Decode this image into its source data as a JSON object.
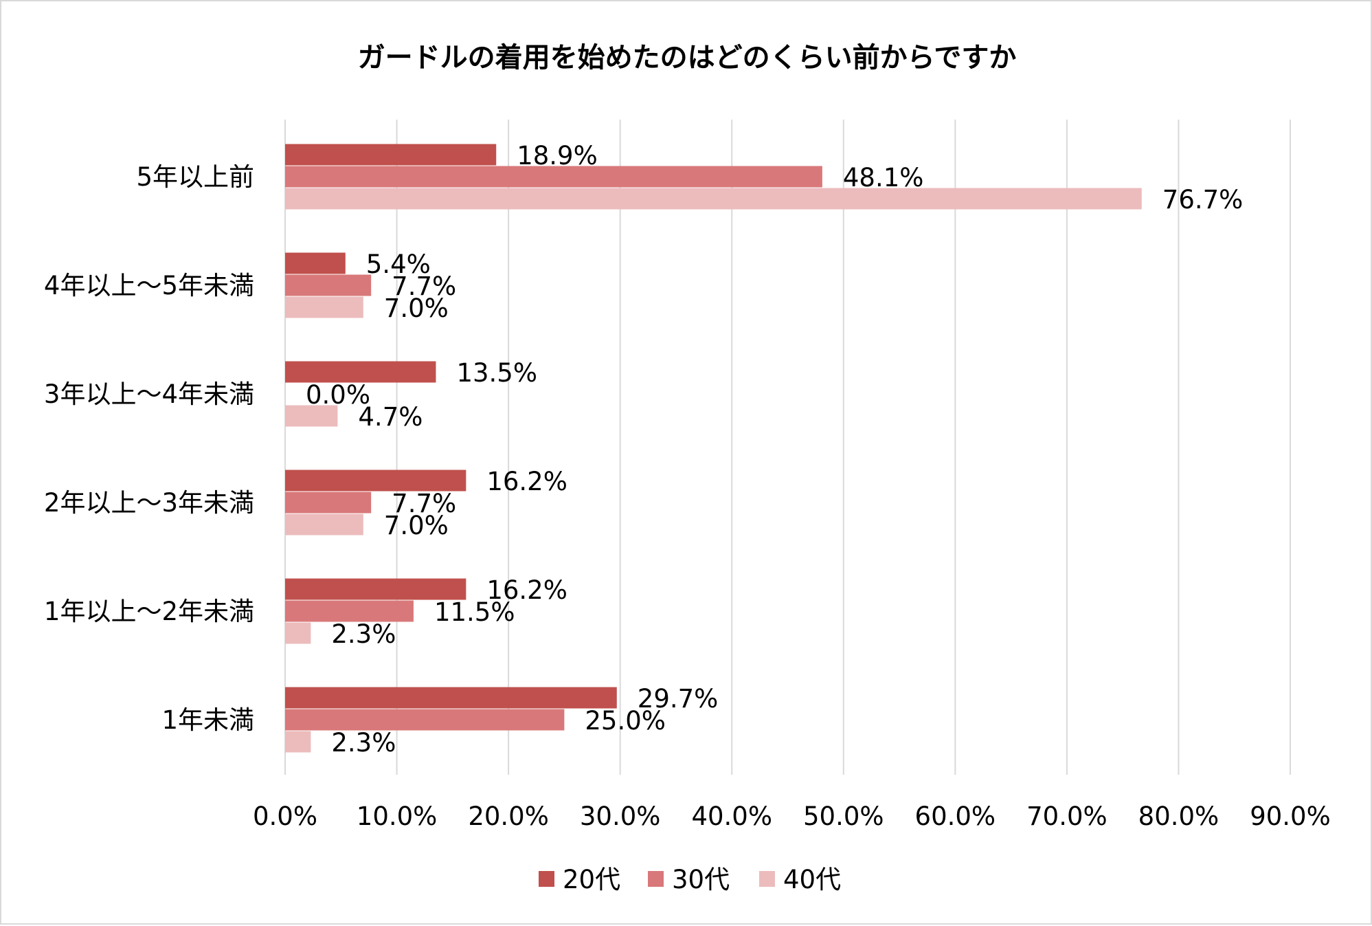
{
  "chart_data": {
    "type": "bar",
    "orientation": "horizontal",
    "title": "ガードルの着用を始めたのはどのくらい前からですか",
    "categories": [
      "5年以上前",
      "4年以上～5年未満",
      "3年以上～4年未満",
      "2年以上～3年未満",
      "1年以上～2年未満",
      "1年未満"
    ],
    "series": [
      {
        "name": "20代",
        "color": "#c0504d",
        "values": [
          18.9,
          5.4,
          13.5,
          16.2,
          16.2,
          29.7
        ],
        "labels": [
          "18.9%",
          "5.4%",
          "13.5%",
          "16.2%",
          "16.2%",
          "29.7%"
        ]
      },
      {
        "name": "30代",
        "color": "#d9787a",
        "values": [
          48.1,
          7.7,
          0.0,
          7.7,
          11.5,
          25.0
        ],
        "labels": [
          "48.1%",
          "7.7%",
          "0.0%",
          "7.7%",
          "11.5%",
          "25.0%"
        ]
      },
      {
        "name": "40代",
        "color": "#ecbcbd",
        "values": [
          76.7,
          7.0,
          4.7,
          7.0,
          2.3,
          2.3
        ],
        "labels": [
          "76.7%",
          "7.0%",
          "4.7%",
          "7.0%",
          "2.3%",
          "2.3%"
        ]
      }
    ],
    "xlim": [
      0,
      90
    ],
    "xticks": [
      0,
      10,
      20,
      30,
      40,
      50,
      60,
      70,
      80,
      90
    ],
    "xtick_labels": [
      "0.0%",
      "10.0%",
      "20.0%",
      "30.0%",
      "40.0%",
      "50.0%",
      "60.0%",
      "70.0%",
      "80.0%",
      "90.0%"
    ],
    "grid": "vertical",
    "legend_position": "bottom"
  }
}
